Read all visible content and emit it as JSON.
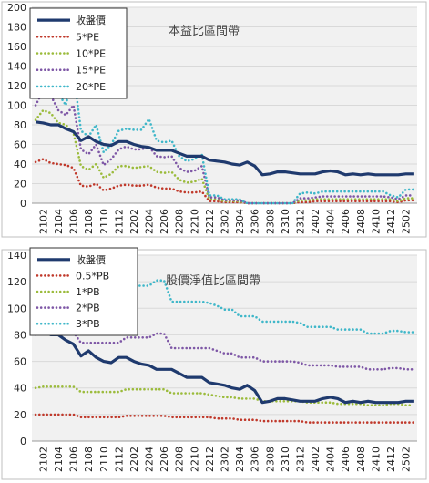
{
  "charts_x_labels": [
    "2102",
    "2104",
    "2106",
    "2108",
    "2110",
    "2112",
    "2202",
    "2204",
    "2206",
    "2208",
    "2210",
    "2212",
    "2302",
    "2304",
    "2306",
    "2308",
    "2310",
    "2312",
    "2402",
    "2404",
    "2406",
    "2408",
    "2410",
    "2412",
    "2502"
  ],
  "colors": {
    "close": "#1f3a6e",
    "m1": "#c0392b",
    "m2": "#9bbb3b",
    "m3": "#7e57a6",
    "m4": "#3fb7c9",
    "plot_bg": "#f1f1f1"
  },
  "chart_data": [
    {
      "id": "pe",
      "type": "line",
      "title": "本益比區間帶",
      "xlabel": "",
      "ylabel": "",
      "ylim": [
        0,
        200
      ],
      "yticks": [
        0,
        20,
        40,
        60,
        80,
        100,
        120,
        140,
        160,
        180,
        200
      ],
      "x": [
        "2101",
        "2102",
        "2103",
        "2104",
        "2105",
        "2106",
        "2107",
        "2108",
        "2109",
        "2110",
        "2111",
        "2112",
        "2201",
        "2202",
        "2203",
        "2204",
        "2205",
        "2206",
        "2207",
        "2208",
        "2209",
        "2210",
        "2211",
        "2212",
        "2301",
        "2302",
        "2303",
        "2304",
        "2305",
        "2306",
        "2307",
        "2308",
        "2309",
        "2310",
        "2311",
        "2312",
        "2401",
        "2402",
        "2403",
        "2404",
        "2405",
        "2406",
        "2407",
        "2408",
        "2409",
        "2410",
        "2411",
        "2412",
        "2501",
        "2502",
        "2503"
      ],
      "grid": true,
      "legend_position": "top-left",
      "series": [
        {
          "name": "收盤價",
          "color_key": "close",
          "dotted": false,
          "values": [
            83,
            82,
            80,
            80,
            76,
            73,
            64,
            68,
            63,
            60,
            59,
            63,
            63,
            60,
            58,
            57,
            54,
            54,
            54,
            51,
            48,
            48,
            48,
            44,
            43,
            42,
            40,
            39,
            42,
            38,
            29,
            30,
            32,
            32,
            31,
            30,
            30,
            30,
            32,
            33,
            32,
            29,
            30,
            29,
            30,
            29,
            29,
            29,
            29,
            30,
            30
          ]
        },
        {
          "name": "5*PE",
          "color_key": "m1",
          "dotted": true,
          "values": [
            42,
            45,
            41,
            40,
            39,
            36,
            18,
            17,
            20,
            13,
            15,
            18,
            19,
            18,
            18,
            19,
            16,
            15,
            15,
            12,
            11,
            11,
            12,
            2,
            2,
            1,
            1,
            1,
            0,
            0,
            0,
            0,
            0,
            0,
            0,
            1,
            1,
            2,
            2,
            2,
            2,
            2,
            2,
            2,
            2,
            2,
            2,
            2,
            1,
            3,
            3
          ]
        },
        {
          "name": "10*PE",
          "color_key": "m2",
          "dotted": true,
          "values": [
            85,
            95,
            92,
            82,
            80,
            72,
            38,
            34,
            40,
            26,
            30,
            38,
            38,
            36,
            37,
            38,
            32,
            31,
            32,
            24,
            21,
            22,
            25,
            4,
            4,
            2,
            2,
            2,
            0,
            0,
            0,
            0,
            0,
            0,
            0,
            3,
            3,
            4,
            4,
            4,
            4,
            4,
            4,
            4,
            4,
            4,
            4,
            4,
            2,
            5,
            5
          ]
        },
        {
          "name": "15*PE",
          "color_key": "m3",
          "dotted": true,
          "values": [
            100,
            115,
            110,
            95,
            90,
            100,
            55,
            50,
            60,
            39,
            45,
            55,
            58,
            55,
            55,
            58,
            48,
            47,
            48,
            36,
            32,
            33,
            38,
            6,
            6,
            3,
            3,
            3,
            0,
            0,
            0,
            0,
            0,
            0,
            0,
            5,
            5,
            6,
            7,
            7,
            7,
            7,
            7,
            7,
            7,
            7,
            7,
            6,
            4,
            8,
            8
          ]
        },
        {
          "name": "20*PE",
          "color_key": "m4",
          "dotted": true,
          "values": [
            110,
            128,
            125,
            112,
            100,
            135,
            74,
            68,
            80,
            52,
            60,
            74,
            76,
            75,
            75,
            86,
            64,
            62,
            64,
            48,
            43,
            45,
            50,
            8,
            8,
            4,
            4,
            4,
            0,
            0,
            0,
            0,
            0,
            0,
            0,
            10,
            11,
            10,
            12,
            12,
            12,
            12,
            12,
            12,
            12,
            12,
            12,
            8,
            6,
            14,
            14
          ]
        }
      ]
    },
    {
      "id": "pb",
      "type": "line",
      "title": "股價淨值比區間帶",
      "xlabel": "",
      "ylabel": "",
      "ylim": [
        0,
        140
      ],
      "yticks": [
        0,
        20,
        40,
        60,
        80,
        100,
        120,
        140
      ],
      "x": [
        "2101",
        "2102",
        "2103",
        "2104",
        "2105",
        "2106",
        "2107",
        "2108",
        "2109",
        "2110",
        "2111",
        "2112",
        "2201",
        "2202",
        "2203",
        "2204",
        "2205",
        "2206",
        "2207",
        "2208",
        "2209",
        "2210",
        "2211",
        "2212",
        "2301",
        "2302",
        "2303",
        "2304",
        "2305",
        "2306",
        "2307",
        "2308",
        "2309",
        "2310",
        "2311",
        "2312",
        "2401",
        "2402",
        "2403",
        "2404",
        "2405",
        "2406",
        "2407",
        "2408",
        "2409",
        "2410",
        "2411",
        "2412",
        "2501",
        "2502",
        "2503"
      ],
      "grid": true,
      "legend_position": "top-left",
      "series": [
        {
          "name": "收盤價",
          "color_key": "close",
          "dotted": false,
          "values": [
            83,
            82,
            80,
            80,
            76,
            73,
            64,
            68,
            63,
            60,
            59,
            63,
            63,
            60,
            58,
            57,
            54,
            54,
            54,
            51,
            48,
            48,
            48,
            44,
            43,
            42,
            40,
            39,
            42,
            38,
            29,
            30,
            32,
            32,
            31,
            30,
            30,
            30,
            32,
            33,
            32,
            29,
            30,
            29,
            30,
            29,
            29,
            29,
            29,
            30,
            30
          ]
        },
        {
          "name": "0.5*PB",
          "color_key": "m1",
          "dotted": true,
          "values": [
            20,
            20,
            20,
            20,
            20,
            20,
            18,
            18,
            18,
            18,
            18,
            18,
            19,
            19,
            19,
            19,
            19,
            19,
            18,
            18,
            18,
            18,
            18,
            18,
            17,
            17,
            17,
            16,
            16,
            16,
            15,
            15,
            15,
            15,
            15,
            15,
            14,
            14,
            14,
            14,
            14,
            14,
            14,
            14,
            14,
            14,
            14,
            14,
            14,
            14,
            14
          ]
        },
        {
          "name": "1*PB",
          "color_key": "m2",
          "dotted": true,
          "values": [
            40,
            41,
            41,
            41,
            41,
            41,
            37,
            37,
            37,
            37,
            37,
            37,
            39,
            39,
            39,
            39,
            39,
            39,
            36,
            36,
            36,
            36,
            36,
            35,
            34,
            33,
            33,
            32,
            32,
            32,
            30,
            30,
            30,
            30,
            30,
            30,
            29,
            29,
            29,
            29,
            28,
            28,
            28,
            28,
            27,
            27,
            27,
            28,
            28,
            27,
            27
          ]
        },
        {
          "name": "2*PB",
          "color_key": "m3",
          "dotted": true,
          "values": [
            80,
            82,
            82,
            82,
            82,
            82,
            74,
            74,
            74,
            74,
            74,
            74,
            78,
            78,
            78,
            78,
            81,
            81,
            70,
            70,
            70,
            70,
            70,
            70,
            68,
            66,
            66,
            63,
            63,
            63,
            60,
            60,
            60,
            60,
            60,
            59,
            57,
            57,
            57,
            57,
            56,
            56,
            56,
            56,
            54,
            54,
            54,
            55,
            55,
            54,
            54
          ]
        },
        {
          "name": "3*PB",
          "color_key": "m4",
          "dotted": true,
          "values": [
            120,
            123,
            123,
            123,
            123,
            123,
            111,
            111,
            111,
            111,
            111,
            111,
            117,
            117,
            117,
            117,
            121,
            121,
            105,
            105,
            105,
            105,
            105,
            104,
            102,
            99,
            99,
            94,
            94,
            94,
            90,
            90,
            90,
            90,
            90,
            89,
            86,
            86,
            86,
            86,
            84,
            84,
            84,
            84,
            81,
            81,
            81,
            83,
            83,
            82,
            82
          ]
        }
      ]
    }
  ]
}
